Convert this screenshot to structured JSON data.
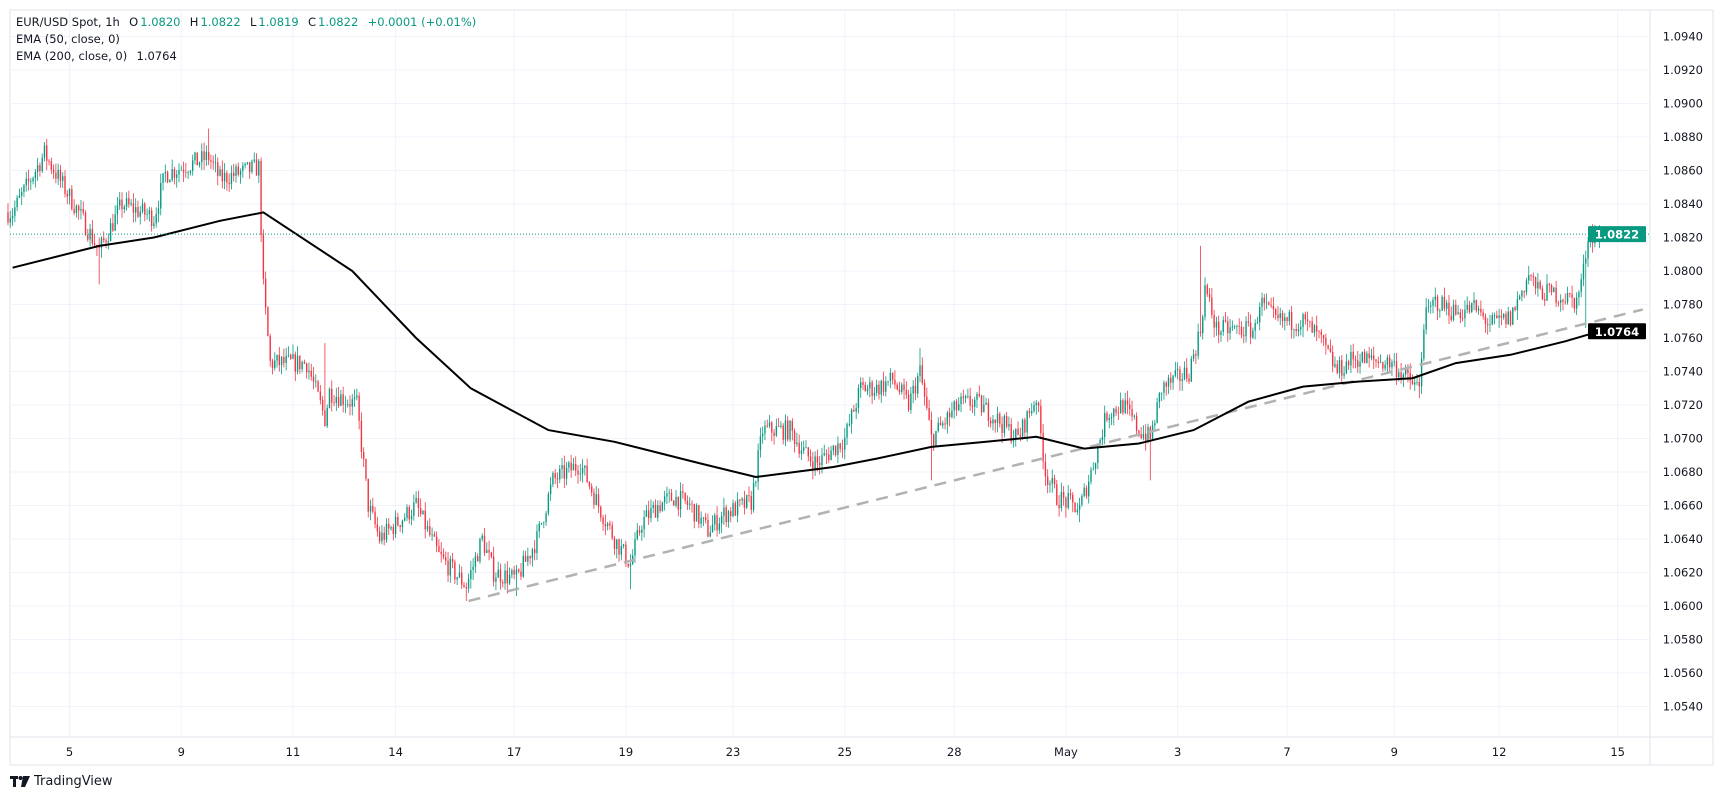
{
  "legend": {
    "symbol": "EUR/USD Spot, 1h",
    "o_label": "O",
    "o": "1.0820",
    "h_label": "H",
    "h": "1.0822",
    "l_label": "L",
    "l": "1.0819",
    "c_label": "C",
    "c": "1.0822",
    "change": "+0.0001 (+0.01%)",
    "ema50": "EMA (50, close, 0)",
    "ema200": "EMA (200, close, 0)",
    "ema200_value": "1.0764"
  },
  "branding": "TradingView",
  "colors": {
    "up": "#089981",
    "down": "#f23645",
    "ema": "#000000",
    "trend": "#b2b2b2",
    "grid": "#f0f3fa"
  },
  "chart_data": {
    "type": "candlestick",
    "title": "EUR/USD Spot, 1h",
    "ylim": [
      1.053,
      1.095
    ],
    "xlim_hours": [
      0,
      740
    ],
    "y_ticks": [
      "1.0940",
      "1.0920",
      "1.0900",
      "1.0880",
      "1.0860",
      "1.0840",
      "1.0820",
      "1.0800",
      "1.0780",
      "1.0760",
      "1.0740",
      "1.0720",
      "1.0700",
      "1.0680",
      "1.0660",
      "1.0640",
      "1.0620",
      "1.0600",
      "1.0580",
      "1.0560",
      "1.0540"
    ],
    "x_ticks": [
      {
        "label": "5",
        "t": 27
      },
      {
        "label": "9",
        "t": 76
      },
      {
        "label": "11",
        "t": 125
      },
      {
        "label": "14",
        "t": 170
      },
      {
        "label": "17",
        "t": 222
      },
      {
        "label": "19",
        "t": 271
      },
      {
        "label": "23",
        "t": 318
      },
      {
        "label": "25",
        "t": 367
      },
      {
        "label": "28",
        "t": 415
      },
      {
        "label": "May",
        "t": 464
      },
      {
        "label": "3",
        "t": 513
      },
      {
        "label": "7",
        "t": 561
      },
      {
        "label": "9",
        "t": 608
      },
      {
        "label": "12",
        "t": 654
      },
      {
        "label": "15",
        "t": 706
      }
    ],
    "price_path": [
      [
        0,
        1.0835
      ],
      [
        2,
        1.0835
      ],
      [
        16,
        1.087
      ],
      [
        31,
        1.0835
      ],
      [
        40,
        1.0812
      ],
      [
        50,
        1.084
      ],
      [
        64,
        1.0832
      ],
      [
        69,
        1.0858
      ],
      [
        88,
        1.0868
      ],
      [
        93,
        1.0855
      ],
      [
        110,
        1.0862
      ],
      [
        112,
        1.079
      ],
      [
        115,
        1.0745
      ],
      [
        131,
        1.0745
      ],
      [
        139,
        1.0712
      ],
      [
        141,
        1.0728
      ],
      [
        153,
        1.072
      ],
      [
        158,
        1.066
      ],
      [
        163,
        1.064
      ],
      [
        179,
        1.066
      ],
      [
        189,
        1.063
      ],
      [
        201,
        1.0612
      ],
      [
        208,
        1.064
      ],
      [
        213,
        1.062
      ],
      [
        223,
        1.0616
      ],
      [
        232,
        1.064
      ],
      [
        239,
        1.0675
      ],
      [
        251,
        1.0685
      ],
      [
        259,
        1.066
      ],
      [
        266,
        1.064
      ],
      [
        273,
        1.0625
      ],
      [
        278,
        1.065
      ],
      [
        285,
        1.066
      ],
      [
        292,
        1.0665
      ],
      [
        299,
        1.066
      ],
      [
        307,
        1.0645
      ],
      [
        314,
        1.0655
      ],
      [
        326,
        1.0662
      ],
      [
        331,
        1.0705
      ],
      [
        343,
        1.0705
      ],
      [
        350,
        1.069
      ],
      [
        355,
        1.0685
      ],
      [
        367,
        1.07
      ],
      [
        374,
        1.073
      ],
      [
        381,
        1.073
      ],
      [
        388,
        1.0735
      ],
      [
        395,
        1.072
      ],
      [
        400,
        1.074
      ],
      [
        405,
        1.07
      ],
      [
        417,
        1.072
      ],
      [
        424,
        1.0722
      ],
      [
        431,
        1.0715
      ],
      [
        443,
        1.07
      ],
      [
        451,
        1.0725
      ],
      [
        455,
        1.068
      ],
      [
        460,
        1.0665
      ],
      [
        470,
        1.0658
      ],
      [
        475,
        1.068
      ],
      [
        482,
        1.0715
      ],
      [
        489,
        1.072
      ],
      [
        496,
        1.0705
      ],
      [
        501,
        1.07
      ],
      [
        506,
        1.073
      ],
      [
        518,
        1.074
      ],
      [
        523,
        1.0765
      ],
      [
        525,
        1.079
      ],
      [
        530,
        1.0765
      ],
      [
        547,
        1.0765
      ],
      [
        549,
        1.0782
      ],
      [
        556,
        1.077
      ],
      [
        568,
        1.077
      ],
      [
        575,
        1.076
      ],
      [
        583,
        1.074
      ],
      [
        590,
        1.0748
      ],
      [
        607,
        1.0745
      ],
      [
        614,
        1.0735
      ],
      [
        619,
        1.073
      ],
      [
        621,
        1.077
      ],
      [
        626,
        1.0782
      ],
      [
        635,
        1.0775
      ],
      [
        643,
        1.0778
      ],
      [
        650,
        1.0768
      ],
      [
        659,
        1.0772
      ],
      [
        667,
        1.0798
      ],
      [
        671,
        1.0788
      ],
      [
        679,
        1.0786
      ],
      [
        688,
        1.0782
      ],
      [
        691,
        1.08
      ],
      [
        693,
        1.0822
      ],
      [
        698,
        1.0822
      ]
    ],
    "wicks": [
      [
        16,
        "high",
        1.0877
      ],
      [
        40,
        "low",
        1.0792
      ],
      [
        88,
        "high",
        1.0885
      ],
      [
        110,
        "high",
        1.0867
      ],
      [
        139,
        "high",
        1.0757
      ],
      [
        201,
        "low",
        1.0603
      ],
      [
        223,
        "low",
        1.0606
      ],
      [
        273,
        "low",
        1.061
      ],
      [
        400,
        "high",
        1.0754
      ],
      [
        405,
        "low",
        1.0675
      ],
      [
        470,
        "low",
        1.065
      ],
      [
        501,
        "low",
        1.0675
      ],
      [
        523,
        "high",
        1.0815
      ],
      [
        619,
        "low",
        1.0724
      ],
      [
        692,
        "low",
        1.0766
      ],
      [
        694,
        "high",
        1.0827
      ]
    ],
    "series": [
      {
        "name": "EMA (200, close, 0)",
        "last": 1.0764,
        "path": [
          [
            2,
            1.0802
          ],
          [
            40,
            1.0815
          ],
          [
            64,
            1.082
          ],
          [
            93,
            1.083
          ],
          [
            112,
            1.0835
          ],
          [
            151,
            1.08
          ],
          [
            179,
            1.076
          ],
          [
            203,
            1.073
          ],
          [
            237,
            1.0705
          ],
          [
            266,
            1.0698
          ],
          [
            304,
            1.0685
          ],
          [
            328,
            1.0677
          ],
          [
            362,
            1.0683
          ],
          [
            381,
            1.0688
          ],
          [
            405,
            1.0695
          ],
          [
            429,
            1.0698
          ],
          [
            451,
            1.0701
          ],
          [
            472,
            1.0694
          ],
          [
            496,
            1.0697
          ],
          [
            520,
            1.0705
          ],
          [
            544,
            1.0722
          ],
          [
            568,
            1.0731
          ],
          [
            592,
            1.0734
          ],
          [
            616,
            1.0736
          ],
          [
            635,
            1.0745
          ],
          [
            659,
            1.075
          ],
          [
            683,
            1.0758
          ],
          [
            698,
            1.0764
          ]
        ]
      }
    ],
    "trendline": [
      [
        202,
        1.0603
      ],
      [
        717,
        1.0777
      ]
    ],
    "last_price": {
      "value": 1.0822,
      "label": "1.0822"
    },
    "ema_label": {
      "value": 1.0764,
      "label": "1.0764"
    }
  }
}
